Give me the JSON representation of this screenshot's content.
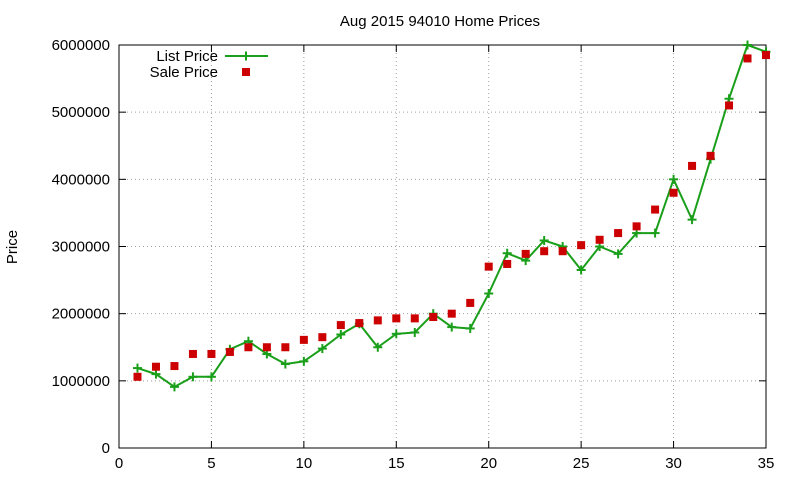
{
  "chart_data": {
    "type": "line",
    "title": "Aug 2015 94010 Home Prices",
    "xlabel": "",
    "ylabel": "Price",
    "xlim": [
      0,
      35
    ],
    "ylim": [
      0,
      6000000
    ],
    "x_ticks": [
      0,
      5,
      10,
      15,
      20,
      25,
      30,
      35
    ],
    "y_ticks": [
      0,
      1000000,
      2000000,
      3000000,
      4000000,
      5000000,
      6000000
    ],
    "grid": true,
    "legend_position": "top-left",
    "x": [
      1,
      2,
      3,
      4,
      5,
      6,
      7,
      8,
      9,
      10,
      11,
      12,
      13,
      14,
      15,
      16,
      17,
      18,
      19,
      20,
      21,
      22,
      23,
      24,
      25,
      26,
      27,
      28,
      29,
      30,
      31,
      32,
      33,
      34,
      35
    ],
    "series": [
      {
        "name": "List Price",
        "style": "line-with-plus-markers",
        "color": "#1a9f1a",
        "values": [
          1190000,
          1100000,
          910000,
          1060000,
          1060000,
          1470000,
          1590000,
          1400000,
          1250000,
          1290000,
          1480000,
          1690000,
          1850000,
          1500000,
          1700000,
          1720000,
          2000000,
          1800000,
          1780000,
          2300000,
          2900000,
          2790000,
          3090000,
          3000000,
          2650000,
          3000000,
          2890000,
          3200000,
          3200000,
          4000000,
          3400000,
          4300000,
          5200000,
          6000000,
          5900000
        ]
      },
      {
        "name": "Sale Price",
        "style": "square-points",
        "color": "#cc0000",
        "values": [
          1060000,
          1210000,
          1220000,
          1400000,
          1400000,
          1430000,
          1500000,
          1500000,
          1500000,
          1610000,
          1650000,
          1830000,
          1860000,
          1900000,
          1930000,
          1930000,
          1950000,
          2000000,
          2160000,
          2700000,
          2740000,
          2890000,
          2930000,
          2930000,
          3020000,
          3100000,
          3200000,
          3300000,
          3550000,
          3800000,
          4200000,
          4350000,
          5100000,
          5800000,
          5850000
        ]
      }
    ]
  }
}
